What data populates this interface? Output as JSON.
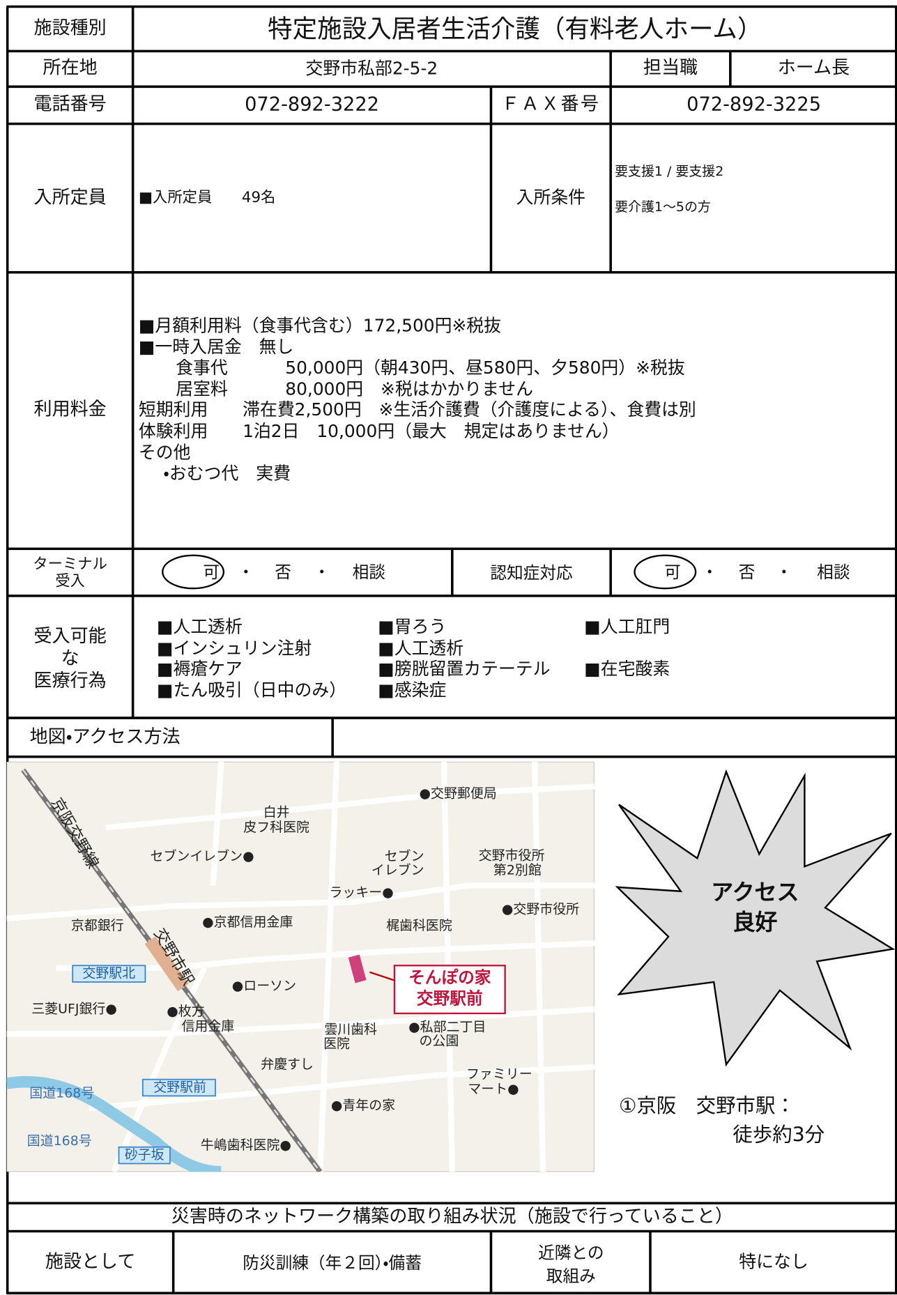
{
  "facility_type": {
    "label": "施設種別",
    "value": "特定施設入居者生活介護（有料老人ホーム）"
  },
  "address": {
    "label": "所在地",
    "value": "交野市私部2-5-2"
  },
  "staff": {
    "label": "担当職",
    "value": "ホーム長"
  },
  "phone": {
    "label": "電話番号",
    "value": "072-892-3222"
  },
  "fax": {
    "label": "ＦＡＸ番号",
    "value": "072-892-3225"
  },
  "capacity": {
    "label": "入所定員",
    "value": "■入所定員　　49名"
  },
  "conditions": {
    "label": "入所条件",
    "lines": [
      "要支援1 / 要支援2",
      "要介護1～5の方"
    ]
  },
  "fees": {
    "label": "利用料金",
    "lines": [
      "■月額利用料（食事代含む）172,500円※税抜",
      "■一時入居金　無し",
      "食事代　　　 50,000円（朝430円、昼580円、夕580円）※税抜",
      "居室料　　　 80,000円　※税はかかりません",
      "短期利用　　滞在費2,500円　※生活介護費（介護度による）、食費は別",
      "体験利用　　1泊2日　10,000円（最大　規定はありません）",
      "その他",
      "・おむつ代　実費"
    ]
  },
  "terminal": {
    "label_lines": [
      "ターミナル",
      "受入"
    ],
    "options": [
      "可",
      "・",
      "否",
      "・",
      "相談"
    ]
  },
  "dementia": {
    "label": "認知症対応",
    "options": [
      "可",
      "・",
      "否",
      "・",
      "相談"
    ]
  },
  "medical": {
    "label_lines": [
      "受入可能",
      "な",
      "医療行為"
    ],
    "columns": [
      [
        "■人工透析",
        "■インシュリン注射",
        "■褥瘡ケア",
        "■たん吸引（日中のみ）"
      ],
      [
        "■胃ろう",
        "■人工透析",
        "■膀胱留置カテーテル",
        "■感染症"
      ],
      [
        "■人工肛門",
        "■在宅酸素"
      ]
    ]
  },
  "map_section": {
    "label": "地図・アクセス方法",
    "map_labels": [
      "●交野郵便局",
      "白井",
      "皮フ科医院",
      "セブンイレブン●",
      "セブン",
      "イレブン",
      "交野市役所",
      "第2別館",
      "ラッキー●",
      "●交野市役所",
      "●京都信用金庫",
      "梶歯科医院",
      "京都銀行",
      "交野駅北",
      "●ローソン",
      "三菱UFJ銀行●",
      "●枚方",
      "信用金庫",
      "雲川歯科",
      "医院",
      "●私部二丁目",
      "の公園",
      "弁慶すし",
      "ファミリー",
      "マート●",
      "国道168号",
      "交野駅前",
      "●青年の家",
      "国道168号",
      "砂子坂",
      "牛嶋歯科医院●",
      "京阪交野線",
      "交野市駅"
    ],
    "callout": [
      "そんぽの家",
      "交野駅前"
    ],
    "burst": [
      "アクセス",
      "良好"
    ],
    "access": [
      "①京阪　交野市駅：",
      "徒歩約3分"
    ]
  },
  "disaster": {
    "title": "災害時のネットワーク構築の取り組み状況（施設で行っていること）",
    "facility_label": "施設として",
    "facility_value": "防災訓練（年２回）・備蓄",
    "neighbor_label": [
      "近隣との",
      "取組み"
    ],
    "neighbor_value": "特になし"
  }
}
